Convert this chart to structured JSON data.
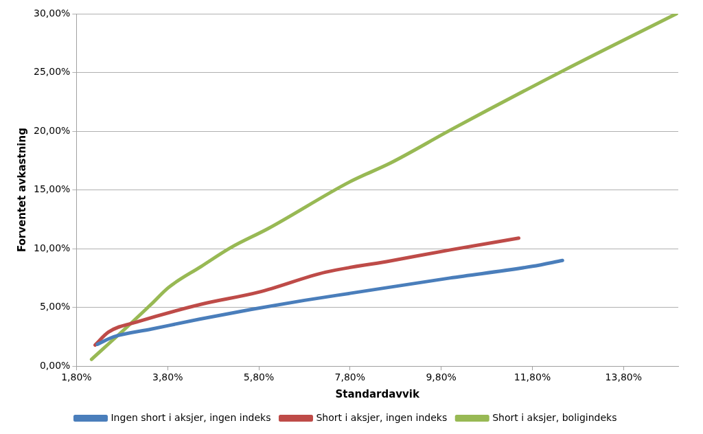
{
  "chart_data": {
    "type": "line",
    "xlabel": "Standardavvik",
    "ylabel": "Forventet avkastning",
    "xlim": [
      1.8,
      15.0
    ],
    "xticks": [
      {
        "value": 1.8,
        "label": "1,80%"
      },
      {
        "value": 3.8,
        "label": "3,80%"
      },
      {
        "value": 5.8,
        "label": "5,80%"
      },
      {
        "value": 7.8,
        "label": "7,80%"
      },
      {
        "value": 9.8,
        "label": "9,80%"
      },
      {
        "value": 11.8,
        "label": "11,80%"
      },
      {
        "value": 13.8,
        "label": "13,80%"
      }
    ],
    "ylim": [
      0,
      30
    ],
    "yticks": [
      {
        "value": 0,
        "label": "0,00%"
      },
      {
        "value": 5,
        "label": "5,00%"
      },
      {
        "value": 10,
        "label": "10,00%"
      },
      {
        "value": 15,
        "label": "15,00%"
      },
      {
        "value": 20,
        "label": "20,00%"
      },
      {
        "value": 25,
        "label": "25,00%"
      },
      {
        "value": 30,
        "label": "30,00%"
      }
    ],
    "grid": "y",
    "legend": "bottom",
    "marker": "none",
    "line_style": "solid",
    "series": [
      {
        "name": "Ingen short i aksjer, ingen indeks",
        "color": "#4a7ebb",
        "x": [
          2.26,
          2.62,
          3.44,
          4.5,
          5.62,
          6.8,
          7.8,
          9.99,
          11.8,
          12.46
        ],
        "values": [
          1.86,
          2.5,
          3.15,
          4.0,
          4.82,
          5.6,
          6.2,
          7.5,
          8.5,
          9.0
        ]
      },
      {
        "name": "Short i aksjer, ingen indeks",
        "color": "#be4b48",
        "x": [
          2.21,
          2.5,
          3.16,
          4.54,
          5.8,
          7.26,
          8.6,
          10.0,
          11.5
        ],
        "values": [
          1.8,
          2.9,
          3.8,
          5.27,
          6.3,
          8.0,
          8.9,
          9.9,
          10.9
        ]
      },
      {
        "name": "Short i aksjer, boligindeks",
        "color": "#98b954",
        "x": [
          2.13,
          2.9,
          3.44,
          3.82,
          4.54,
          5.19,
          6.0,
          7.8,
          8.69,
          10.05,
          12.5,
          14.96
        ],
        "values": [
          0.58,
          3.3,
          5.27,
          6.7,
          8.5,
          10.1,
          11.7,
          15.7,
          17.3,
          20.2,
          25.2,
          30.0
        ]
      }
    ]
  }
}
